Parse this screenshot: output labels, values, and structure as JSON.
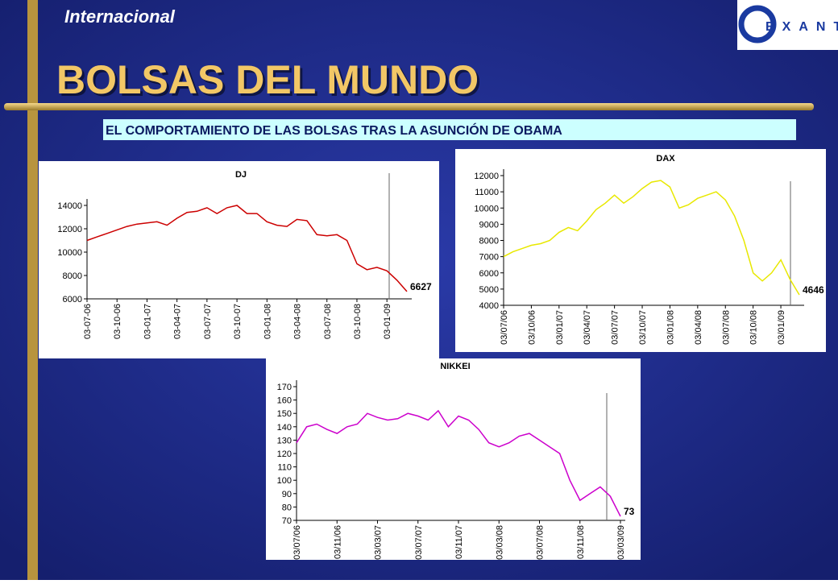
{
  "header": {
    "section": "Internacional",
    "title": "BOLSAS DEL MUNDO",
    "subtitle": "EL COMPORTAMIENTO  DE LAS BOLSAS TRAS LA ASUNCIÓN DE OBAMA",
    "logo": "EXANTE"
  },
  "chart_data": [
    {
      "type": "line",
      "title": "DJ",
      "color": "#cc0000",
      "categories": [
        "03-07-06",
        null,
        null,
        "03-10-06",
        null,
        null,
        "03-01-07",
        null,
        null,
        "03-04-07",
        null,
        null,
        "03-07-07",
        null,
        null,
        "03-10-07",
        null,
        null,
        "03-01-08",
        null,
        null,
        "03-04-08",
        null,
        null,
        "03-07-08",
        null,
        null,
        "03-10-08",
        null,
        null,
        "03-01-09",
        null,
        null
      ],
      "values": [
        11000,
        11300,
        11600,
        11900,
        12200,
        12400,
        12500,
        12600,
        12300,
        12900,
        13400,
        13500,
        13800,
        13300,
        13800,
        14000,
        13300,
        13300,
        12600,
        12300,
        12200,
        12800,
        12700,
        11500,
        11400,
        11500,
        11000,
        9000,
        8500,
        8700,
        8400,
        7600,
        6627
      ],
      "ylim": [
        6000,
        14000
      ],
      "yticks": [
        6000,
        8000,
        10000,
        12000,
        14000
      ]
    },
    {
      "type": "line",
      "title": "DAX",
      "color": "#e8e800",
      "categories": [
        "03/07/06",
        null,
        null,
        "03/10/06",
        null,
        null,
        "03/01/07",
        null,
        null,
        "03/04/07",
        null,
        null,
        "03/07/07",
        null,
        null,
        "03/10/07",
        null,
        null,
        "03/01/08",
        null,
        null,
        "03/04/08",
        null,
        null,
        "03/07/08",
        null,
        null,
        "03/10/08",
        null,
        null,
        "03/01/09",
        null,
        null
      ],
      "values": [
        7000,
        7300,
        7500,
        7700,
        7800,
        8000,
        8500,
        8800,
        8600,
        9200,
        9900,
        10300,
        10800,
        10300,
        10700,
        11200,
        11600,
        11700,
        11300,
        10000,
        10200,
        10600,
        10800,
        11000,
        10500,
        9500,
        8000,
        6000,
        5500,
        6000,
        6800,
        5600,
        4646
      ],
      "ylim": [
        4000,
        12000
      ],
      "yticks": [
        4000,
        5000,
        6000,
        7000,
        8000,
        9000,
        10000,
        11000,
        12000
      ]
    },
    {
      "type": "line",
      "title": "NIKKEI",
      "color": "#cc00cc",
      "categories": [
        "03/07/06",
        null,
        null,
        null,
        "03/11/06",
        null,
        null,
        null,
        "03/03/07",
        null,
        null,
        null,
        "03/07/07",
        null,
        null,
        null,
        "03/11/07",
        null,
        null,
        null,
        "03/03/08",
        null,
        null,
        null,
        "03/07/08",
        null,
        null,
        null,
        "03/11/08",
        null,
        null,
        null,
        "03/03/09"
      ],
      "values": [
        128,
        140,
        142,
        138,
        135,
        140,
        142,
        150,
        147,
        145,
        146,
        150,
        148,
        145,
        152,
        140,
        148,
        145,
        138,
        128,
        125,
        128,
        133,
        135,
        130,
        125,
        120,
        100,
        85,
        90,
        95,
        88,
        73
      ],
      "ylim": [
        70,
        170
      ],
      "yticks": [
        70,
        80,
        90,
        100,
        110,
        120,
        130,
        140,
        150,
        160,
        170
      ]
    }
  ]
}
